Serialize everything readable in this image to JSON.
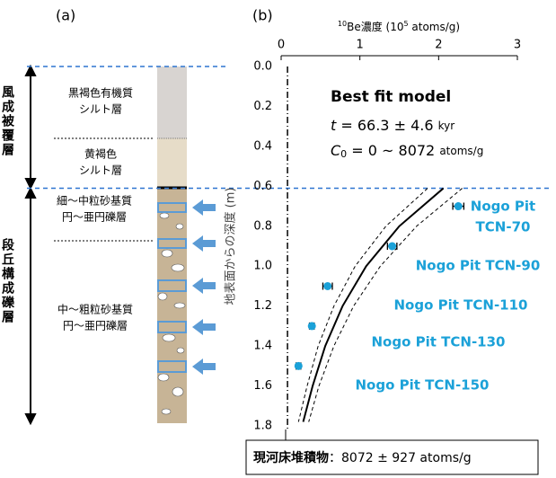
{
  "panel_a": {
    "label": "(a)",
    "groups": [
      "風成被覆層",
      "段丘構成礫層"
    ],
    "layers": [
      [
        "黒褐色有機質",
        "シルト層"
      ],
      [
        "黄褐色",
        "シルト層"
      ],
      [
        "細～中粒砂基質",
        "円～亜円礫層"
      ],
      [
        "中～粗粒砂基質",
        "円～亜円礫層"
      ]
    ]
  },
  "chart_data": {
    "type": "scatter",
    "panel_label": "(b)",
    "x_label": {
      "sup": "10",
      "main": "Be濃度 (10",
      "sup2": "5",
      "rest": " atoms/g)"
    },
    "y_label": "地表面からの深度 (m)",
    "xlim": [
      0,
      3
    ],
    "xticks": [
      0,
      1,
      2,
      3
    ],
    "ylim": [
      0,
      1.8
    ],
    "y_inverted": true,
    "yticks": [
      {
        "value": 0,
        "label": "0.0"
      },
      0.2,
      0.4,
      0.6,
      0.8,
      {
        "value": 1,
        "label": "1.0"
      },
      1.2,
      1.4,
      1.6,
      1.8
    ],
    "points": {
      "color": "#1ba1d8",
      "x": [
        2.25,
        1.41,
        0.59,
        0.39,
        0.22
      ],
      "y": [
        0.7,
        0.9,
        1.1,
        1.3,
        1.5
      ],
      "xerr": [
        0.07,
        0.06,
        0.06,
        0.03,
        0.03
      ],
      "labels": [
        [
          "Nogo Pit",
          "TCN-70"
        ],
        [
          "Nogo Pit TCN-90"
        ],
        [
          "Nogo Pit TCN-110"
        ],
        [
          "Nogo Pit TCN-130"
        ],
        [
          "Nogo Pit TCN-150"
        ]
      ]
    },
    "fit": {
      "y": [
        0.61,
        0.8,
        1.0,
        1.2,
        1.4,
        1.6,
        1.78
      ],
      "x": [
        2.06,
        1.5,
        1.08,
        0.78,
        0.56,
        0.4,
        0.28
      ],
      "upper": [
        2.3,
        1.72,
        1.26,
        0.92,
        0.67,
        0.48,
        0.35
      ],
      "lower": [
        1.86,
        1.33,
        0.94,
        0.67,
        0.47,
        0.33,
        0.22
      ]
    },
    "inheritance_x": 0.08072,
    "boundary_depth": 0.61,
    "model": {
      "title": "Best fit model",
      "t_sym": "t",
      "t_text": " = 66.3 ± 4.6 ",
      "t_unit": "kyr",
      "c_sym": "C",
      "c_sub": "0",
      "c_text": " = 0 ~ 8072 ",
      "c_unit": "atoms/g"
    },
    "callout": {
      "label": "現河床堆積物",
      "text": "：8072 ± 927 atoms/g"
    }
  }
}
